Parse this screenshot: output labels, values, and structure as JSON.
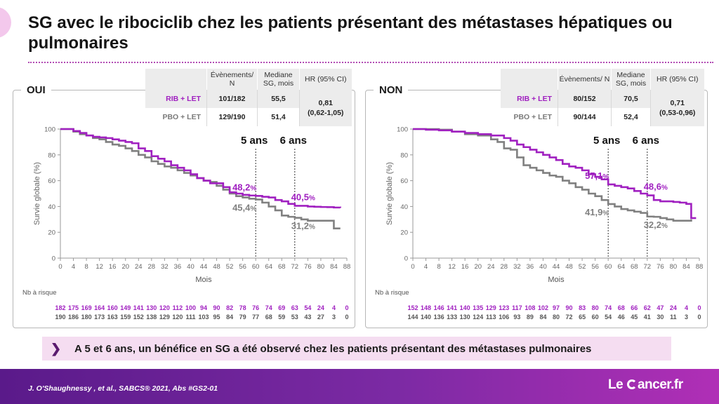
{
  "title": "SG avec le ribociclib chez les patients présentant des métastases hépatiques ou pulmonaires",
  "colors": {
    "rib": "#a020c0",
    "pbo": "#808080"
  },
  "panels": [
    {
      "label": "OUI",
      "table": {
        "headers": [
          "Évènements/ N",
          "Mediane SG, mois",
          "HR (95% CI)"
        ],
        "rows": [
          {
            "arm": "RIB + LET",
            "events": "101/182",
            "median": "55,5"
          },
          {
            "arm": "PBO + LET",
            "events": "129/190",
            "median": "51,4"
          }
        ],
        "hr": "0,81",
        "ci": "(0,62-1,05)"
      }
    },
    {
      "label": "NON",
      "table": {
        "headers": [
          "Évènements/ N",
          "Mediane SG, mois",
          "HR (95% CI)"
        ],
        "rows": [
          {
            "arm": "RIB + LET",
            "events": "80/152",
            "median": "70,5"
          },
          {
            "arm": "PBO + LET",
            "events": "90/144",
            "median": "52,4"
          }
        ],
        "hr": "0,71",
        "ci": "(0,53-0,96)"
      }
    }
  ],
  "chart_data": [
    {
      "type": "line",
      "xlabel": "Mois",
      "ylabel": "Survie globale (%)",
      "xlim": [
        0,
        88
      ],
      "ylim": [
        0,
        100
      ],
      "xticks": [
        0,
        4,
        8,
        12,
        16,
        20,
        24,
        28,
        32,
        36,
        40,
        44,
        48,
        52,
        56,
        60,
        64,
        68,
        72,
        76,
        80,
        84,
        88
      ],
      "yticks": [
        0,
        20,
        40,
        60,
        80,
        100
      ],
      "vlines": [
        {
          "x": 60,
          "label": "5 ans"
        },
        {
          "x": 72,
          "label": "6 ans"
        }
      ],
      "annotations": [
        {
          "series": "RIB + LET",
          "x": 60,
          "y": 48.2,
          "text": "48,2",
          "unit": "%"
        },
        {
          "series": "PBO + LET",
          "x": 60,
          "y": 45.4,
          "text": "45,4",
          "unit": "%"
        },
        {
          "series": "RIB + LET",
          "x": 72,
          "y": 40.5,
          "text": "40,5",
          "unit": "%"
        },
        {
          "series": "PBO + LET",
          "x": 72,
          "y": 31.2,
          "text": "31,2",
          "unit": "%"
        }
      ],
      "series": [
        {
          "name": "RIB + LET",
          "x": [
            0,
            4,
            6,
            8,
            10,
            12,
            14,
            16,
            18,
            20,
            22,
            24,
            26,
            28,
            30,
            32,
            34,
            36,
            38,
            40,
            42,
            44,
            46,
            48,
            50,
            52,
            54,
            56,
            58,
            60,
            62,
            64,
            66,
            68,
            70,
            72,
            74,
            76,
            78,
            80,
            82,
            84,
            86
          ],
          "y": [
            100,
            98.5,
            97,
            95,
            94,
            93.5,
            93,
            92,
            91,
            90,
            89,
            85,
            83,
            79,
            77,
            75,
            72,
            70,
            68,
            65,
            62,
            60,
            58,
            58,
            55,
            51,
            50,
            49,
            48.5,
            48.2,
            47.5,
            47,
            45,
            44,
            42,
            40.5,
            40.5,
            40,
            39.8,
            39.6,
            39.5,
            39.2,
            39
          ]
        },
        {
          "name": "PBO + LET",
          "x": [
            0,
            4,
            6,
            8,
            10,
            12,
            14,
            16,
            18,
            20,
            22,
            24,
            26,
            28,
            30,
            32,
            34,
            36,
            38,
            40,
            42,
            44,
            46,
            48,
            50,
            52,
            54,
            56,
            58,
            60,
            62,
            64,
            66,
            68,
            70,
            72,
            74,
            76,
            78,
            80,
            82,
            84,
            86
          ],
          "y": [
            100,
            98,
            96,
            95,
            93,
            92,
            90,
            88,
            87,
            85,
            83,
            80,
            78,
            75,
            73,
            71,
            70,
            68,
            66,
            64,
            62,
            60,
            59,
            56,
            53,
            50,
            48,
            47,
            46,
            45.4,
            43,
            40,
            37,
            33,
            32,
            31.2,
            30,
            29,
            29,
            29,
            29,
            23,
            23
          ]
        }
      ],
      "risk": {
        "title": "Nb à risque",
        "x": [
          0,
          4,
          8,
          12,
          16,
          20,
          24,
          28,
          32,
          36,
          40,
          44,
          48,
          52,
          56,
          60,
          64,
          68,
          72,
          76,
          80,
          84,
          88
        ],
        "rows": [
          {
            "series": "RIB + LET",
            "values": [
              "182",
              "175",
              "169",
              "164",
              "160",
              "149",
              "141",
              "130",
              "120",
              "112",
              "100",
              "94",
              "90",
              "82",
              "78",
              "76",
              "74",
              "69",
              "63",
              "54",
              "24",
              "4",
              "0"
            ]
          },
          {
            "series": "PBO + LET",
            "values": [
              "190",
              "186",
              "180",
              "173",
              "163",
              "159",
              "152",
              "138",
              "129",
              "120",
              "111",
              "103",
              "95",
              "84",
              "79",
              "77",
              "68",
              "59",
              "53",
              "43",
              "27",
              "3",
              "0"
            ]
          }
        ]
      }
    },
    {
      "type": "line",
      "xlabel": "Mois",
      "ylabel": "Survie globale (%)",
      "xlim": [
        0,
        88
      ],
      "ylim": [
        0,
        100
      ],
      "xticks": [
        0,
        4,
        8,
        12,
        16,
        20,
        24,
        28,
        32,
        36,
        40,
        44,
        48,
        52,
        56,
        60,
        64,
        68,
        72,
        76,
        80,
        84,
        88
      ],
      "yticks": [
        0,
        20,
        40,
        60,
        80,
        100
      ],
      "vlines": [
        {
          "x": 60,
          "label": "5 ans"
        },
        {
          "x": 72,
          "label": "6 ans"
        }
      ],
      "annotations": [
        {
          "series": "RIB + LET",
          "x": 60,
          "y": 57.1,
          "text": "57,1",
          "unit": "%"
        },
        {
          "series": "PBO + LET",
          "x": 60,
          "y": 41.9,
          "text": "41,9",
          "unit": "%"
        },
        {
          "series": "RIB + LET",
          "x": 72,
          "y": 48.6,
          "text": "48,6",
          "unit": "%"
        },
        {
          "series": "PBO + LET",
          "x": 72,
          "y": 32.2,
          "text": "32,2",
          "unit": "%"
        }
      ],
      "series": [
        {
          "name": "RIB + LET",
          "x": [
            0,
            4,
            8,
            12,
            16,
            20,
            24,
            28,
            30,
            32,
            34,
            36,
            38,
            40,
            42,
            44,
            46,
            48,
            50,
            52,
            54,
            56,
            58,
            60,
            62,
            64,
            66,
            68,
            70,
            72,
            74,
            76,
            80,
            82,
            84,
            85,
            85.5,
            87
          ],
          "y": [
            100,
            99.5,
            99,
            98,
            97,
            96,
            95,
            93,
            91,
            88,
            86,
            84,
            82,
            80,
            78,
            76,
            73,
            71,
            70,
            68,
            65,
            63,
            61,
            57.1,
            56,
            55,
            54,
            52,
            50,
            48.6,
            45,
            44,
            43.5,
            43,
            42,
            42,
            31,
            31
          ]
        },
        {
          "name": "PBO + LET",
          "x": [
            0,
            4,
            8,
            10,
            12,
            16,
            20,
            24,
            26,
            28,
            30,
            32,
            34,
            36,
            38,
            40,
            42,
            44,
            46,
            48,
            50,
            52,
            54,
            56,
            58,
            60,
            62,
            64,
            66,
            68,
            70,
            72,
            74,
            76,
            78,
            80,
            82,
            84,
            85.5
          ],
          "y": [
            100,
            100,
            99.5,
            99.5,
            98,
            96,
            95,
            92,
            90,
            85,
            84,
            78,
            72,
            70,
            68,
            66,
            64,
            63,
            60,
            58,
            55,
            53,
            50,
            48,
            45,
            41.9,
            40,
            38,
            37,
            36,
            35,
            32.2,
            32,
            31,
            30,
            29,
            29,
            29,
            30
          ]
        }
      ],
      "risk": {
        "title": "Nb à risque",
        "x": [
          0,
          4,
          8,
          12,
          16,
          20,
          24,
          28,
          32,
          36,
          40,
          44,
          48,
          52,
          56,
          60,
          64,
          68,
          72,
          76,
          80,
          84,
          88
        ],
        "rows": [
          {
            "series": "RIB + LET",
            "values": [
              "152",
              "148",
              "146",
              "141",
              "140",
              "135",
              "129",
              "123",
              "117",
              "108",
              "102",
              "97",
              "90",
              "83",
              "80",
              "74",
              "68",
              "66",
              "62",
              "47",
              "24",
              "4",
              "0"
            ]
          },
          {
            "series": "PBO + LET",
            "values": [
              "144",
              "140",
              "136",
              "133",
              "130",
              "124",
              "113",
              "106",
              "93",
              "89",
              "84",
              "80",
              "72",
              "65",
              "60",
              "54",
              "46",
              "45",
              "41",
              "30",
              "11",
              "3",
              "0"
            ]
          }
        ]
      }
    }
  ],
  "banner": {
    "icon": "chevron-right-icon",
    "text": "A 5 et 6 ans, un bénéfice en SG a été observé chez les patients présentant des métastases pulmonaires"
  },
  "footer": {
    "citation": "J. O'Shaughnessy , et al., SABCS® 2021, Abs #GS2-01",
    "logo_left": "Le",
    "logo_right": "ancer.fr"
  }
}
